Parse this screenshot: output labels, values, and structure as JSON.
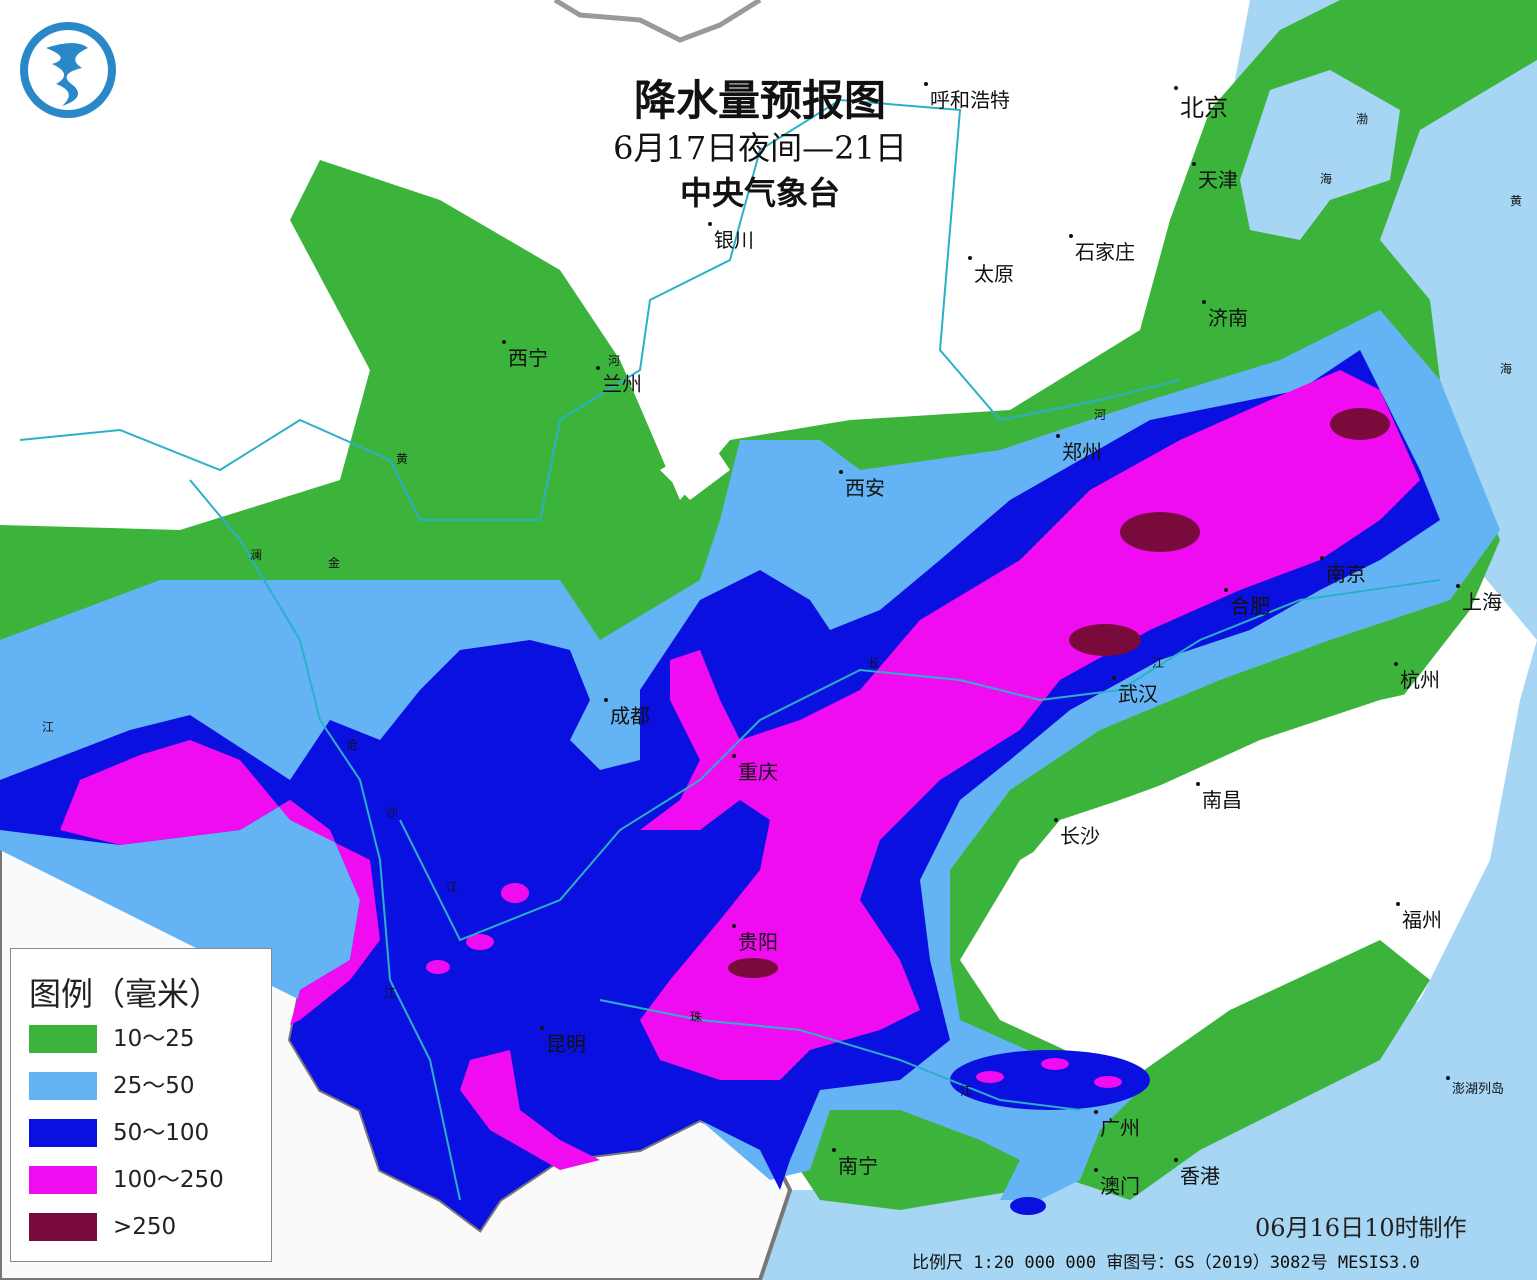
{
  "title": {
    "main": "降水量预报图",
    "period": "6月17日夜间—21日",
    "issuer": "中央气象台"
  },
  "colors": {
    "sea": "#a6d6f3",
    "10-25": "#3cb43c",
    "25-50": "#64b4f5",
    "50-100": "#0a10e0",
    "100-250": "#f00cf0",
    ">250": "#780a3c"
  },
  "legend": {
    "title": "图例（毫米）",
    "items": [
      {
        "label": "10～25",
        "color": "#3cb43c"
      },
      {
        "label": "25～50",
        "color": "#64b4f5"
      },
      {
        "label": "50～100",
        "color": "#0a10e0"
      },
      {
        "label": "100～250",
        "color": "#f00cf0"
      },
      {
        "label": ">250",
        "color": "#780a3c"
      }
    ]
  },
  "cities": [
    "呼和浩特",
    "北京",
    "天津",
    "银川",
    "太原",
    "石家庄",
    "济南",
    "西宁",
    "兰州",
    "郑州",
    "西安",
    "南京",
    "合肥",
    "上海",
    "成都",
    "武汉",
    "杭州",
    "重庆",
    "南昌",
    "长沙",
    "福州",
    "贵阳",
    "昆明",
    "广州",
    "南宁",
    "澳门",
    "香港",
    "澎湖列岛"
  ],
  "rivers": [
    "河",
    "黄",
    "澜",
    "金",
    "江",
    "沧",
    "沙",
    "江",
    "江",
    "长",
    "江",
    "珠",
    "江",
    "河"
  ],
  "seas": [
    "渤",
    "海",
    "黄",
    "海"
  ],
  "issued": "06月16日10时制作",
  "footer": "比例尺 1:20 000 000  审图号：GS（2019）3082号 MESIS3.0"
}
